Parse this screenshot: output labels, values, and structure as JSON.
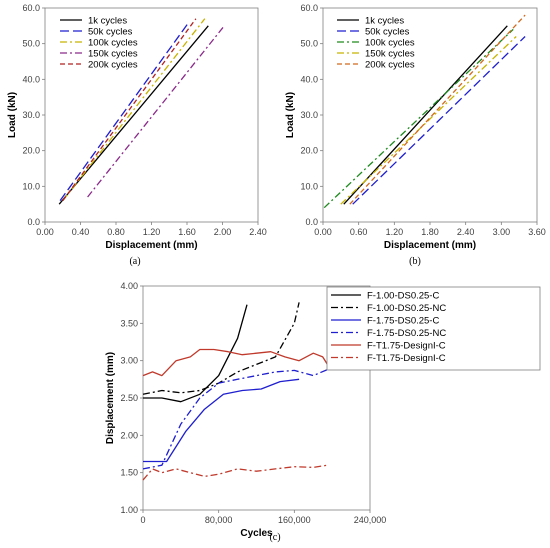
{
  "chart_data": [
    {
      "type": "line",
      "panel": "(a)",
      "xlabel": "Displacement (mm)",
      "ylabel": "Load (kN)",
      "xlim": [
        0,
        2.4
      ],
      "ylim": [
        0,
        60
      ],
      "xticks": [
        "0.00",
        "0.40",
        "0.80",
        "1.20",
        "1.60",
        "2.00",
        "2.40"
      ],
      "yticks": [
        "0.0",
        "10.0",
        "20.0",
        "30.0",
        "40.0",
        "50.0",
        "60.0"
      ],
      "grid": false,
      "legend": "top-left",
      "series": [
        {
          "name": "1k cycles",
          "color": "#000000",
          "dash": "solid",
          "x": [
            0.16,
            1.84
          ],
          "y": [
            5,
            55
          ]
        },
        {
          "name": "50k cycles",
          "color": "#1f1fd0",
          "dash": "long-dash",
          "x": [
            0.17,
            1.62
          ],
          "y": [
            6,
            56
          ]
        },
        {
          "name": "100k cycles",
          "color": "#c8b400",
          "dash": "dash-dot",
          "x": [
            0.2,
            1.8
          ],
          "y": [
            6,
            57
          ]
        },
        {
          "name": "150k cycles",
          "color": "#8b2a8b",
          "dash": "dash-dot",
          "x": [
            0.48,
            2.02
          ],
          "y": [
            7,
            55
          ]
        },
        {
          "name": "200k cycles",
          "color": "#b22222",
          "dash": "dash",
          "x": [
            0.2,
            1.7
          ],
          "y": [
            6,
            57
          ]
        }
      ]
    },
    {
      "type": "line",
      "panel": "(b)",
      "xlabel": "Displacement (mm)",
      "ylabel": "Load (kN)",
      "xlim": [
        0,
        3.6
      ],
      "ylim": [
        0,
        60
      ],
      "xticks": [
        "0.00",
        "0.60",
        "1.20",
        "1.80",
        "2.40",
        "3.00",
        "3.60"
      ],
      "yticks": [
        "0.0",
        "10.0",
        "20.0",
        "30.0",
        "40.0",
        "50.0",
        "60.0"
      ],
      "grid": false,
      "legend": "top-left",
      "series": [
        {
          "name": "1k cycles",
          "color": "#000000",
          "dash": "solid",
          "x": [
            0.35,
            3.1
          ],
          "y": [
            5,
            55
          ]
        },
        {
          "name": "50k cycles",
          "color": "#1f1fd0",
          "dash": "long-dash",
          "x": [
            0.5,
            3.4
          ],
          "y": [
            5,
            52
          ]
        },
        {
          "name": "100k cycles",
          "color": "#1f8a1f",
          "dash": "dash-dot",
          "x": [
            0.02,
            3.2
          ],
          "y": [
            4,
            54
          ]
        },
        {
          "name": "150k cycles",
          "color": "#c8b400",
          "dash": "dash-dot",
          "x": [
            0.3,
            3.25
          ],
          "y": [
            5,
            52
          ]
        },
        {
          "name": "200k cycles",
          "color": "#d2691e",
          "dash": "dash",
          "x": [
            0.45,
            3.4
          ],
          "y": [
            5,
            58
          ]
        }
      ]
    },
    {
      "type": "line",
      "panel": "(c)",
      "xlabel": "Cycles",
      "ylabel": "Displacement (mm)",
      "xlim": [
        0,
        240000
      ],
      "ylim": [
        1.0,
        4.0
      ],
      "xticks": [
        "0",
        "80,000",
        "160,000",
        "240,000"
      ],
      "yticks": [
        "1.00",
        "1.50",
        "2.00",
        "2.50",
        "3.00",
        "3.50",
        "4.00"
      ],
      "grid": false,
      "legend": "right",
      "series": [
        {
          "name": "F-1.00-DS0.25-C",
          "color": "#000000",
          "dash": "solid",
          "x": [
            0,
            20000,
            40000,
            60000,
            80000,
            100000,
            110000
          ],
          "y": [
            2.5,
            2.5,
            2.45,
            2.55,
            2.8,
            3.3,
            3.75
          ]
        },
        {
          "name": "F-1.00-DS0.25-NC",
          "color": "#000000",
          "dash": "dash-dot",
          "x": [
            0,
            20000,
            40000,
            60000,
            80000,
            100000,
            120000,
            140000,
            160000,
            165000
          ],
          "y": [
            2.55,
            2.6,
            2.57,
            2.6,
            2.7,
            2.85,
            2.95,
            3.05,
            3.5,
            3.78
          ]
        },
        {
          "name": "F-1.75-DS0.25-C",
          "color": "#1f1fd0",
          "dash": "solid",
          "x": [
            0,
            25000,
            45000,
            65000,
            85000,
            105000,
            125000,
            145000,
            165000
          ],
          "y": [
            1.65,
            1.65,
            2.05,
            2.35,
            2.55,
            2.6,
            2.62,
            2.72,
            2.75
          ]
        },
        {
          "name": "F-1.75-DS0.25-NC",
          "color": "#1f1fd0",
          "dash": "dash-dot",
          "x": [
            0,
            20000,
            40000,
            60000,
            80000,
            100000,
            120000,
            140000,
            160000,
            180000,
            195000
          ],
          "y": [
            1.55,
            1.6,
            2.15,
            2.5,
            2.7,
            2.75,
            2.8,
            2.85,
            2.87,
            2.8,
            2.88
          ]
        },
        {
          "name": "F-T1.75-DesignI-C",
          "color": "#c0392b",
          "dash": "solid",
          "x": [
            0,
            10000,
            20000,
            35000,
            50000,
            60000,
            75000,
            90000,
            105000,
            120000,
            135000,
            150000,
            165000,
            180000,
            190000,
            195000
          ],
          "y": [
            2.8,
            2.85,
            2.8,
            3.0,
            3.05,
            3.15,
            3.15,
            3.12,
            3.08,
            3.1,
            3.12,
            3.05,
            3.0,
            3.1,
            3.05,
            2.95
          ]
        },
        {
          "name": "F-T1.75-DesignI-C",
          "color": "#c0392b",
          "dash": "dash-dot",
          "x": [
            0,
            10000,
            20000,
            35000,
            50000,
            65000,
            80000,
            100000,
            120000,
            140000,
            160000,
            180000,
            195000
          ],
          "y": [
            1.4,
            1.55,
            1.5,
            1.55,
            1.5,
            1.45,
            1.48,
            1.55,
            1.52,
            1.55,
            1.58,
            1.57,
            1.6
          ]
        }
      ]
    }
  ]
}
